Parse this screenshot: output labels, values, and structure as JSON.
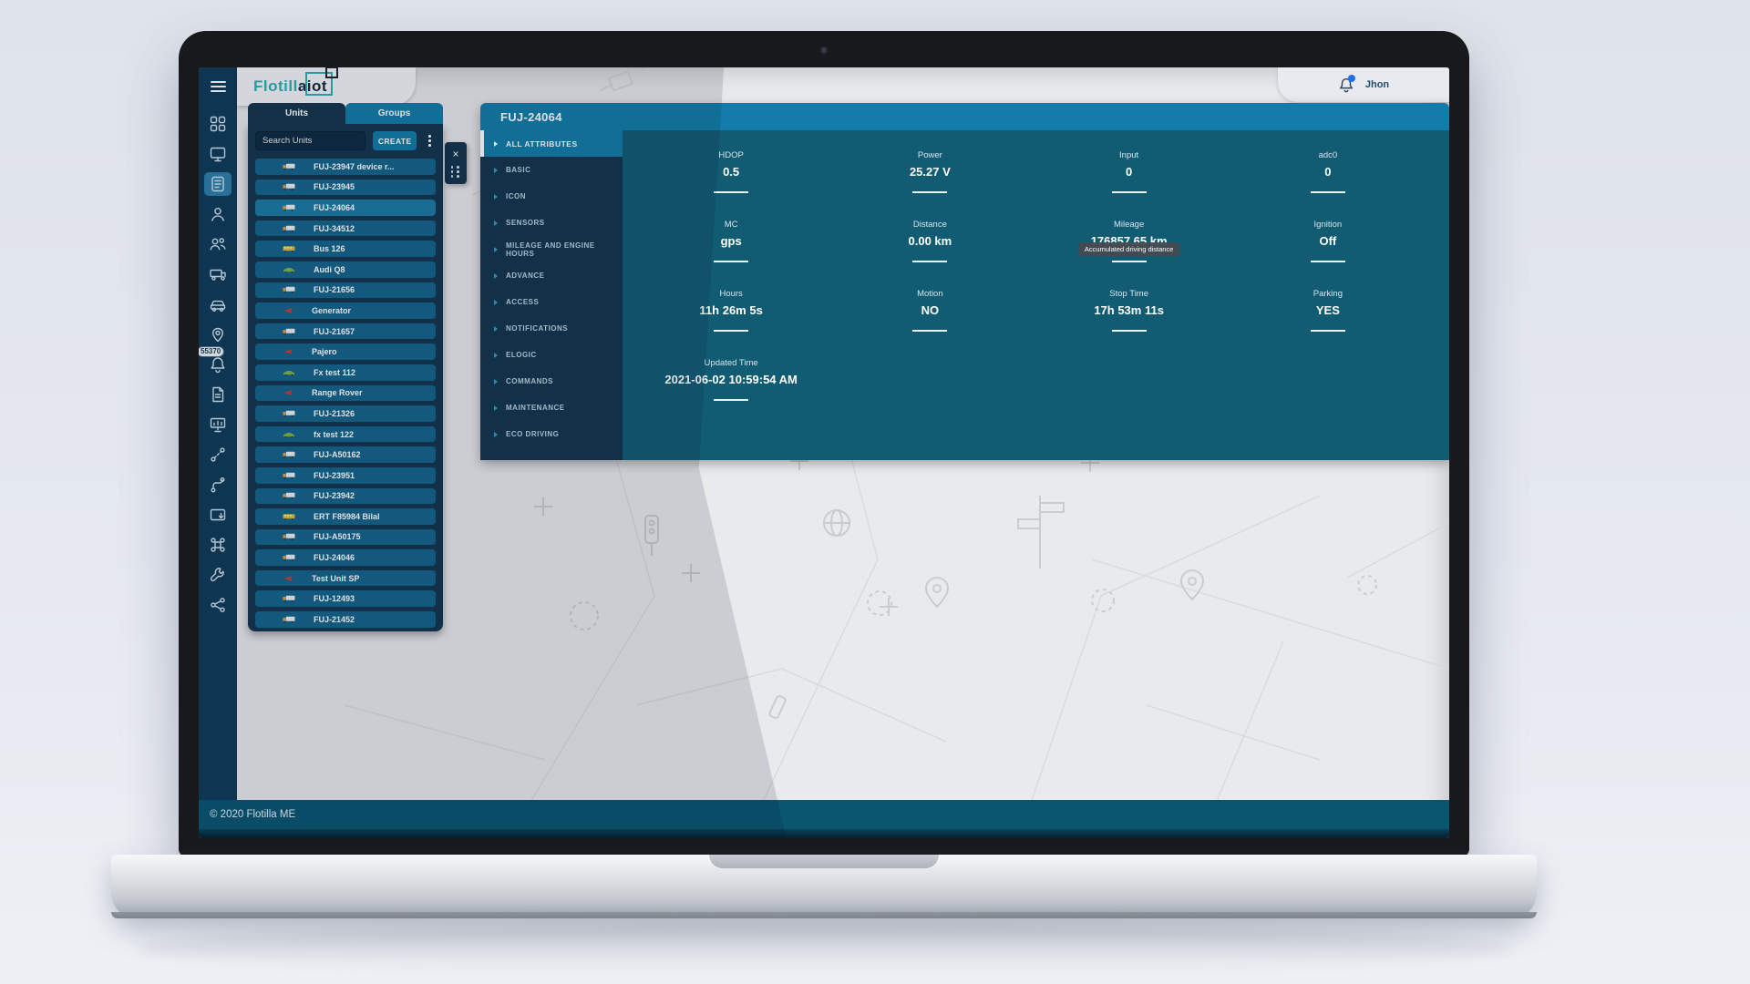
{
  "brand": {
    "logo_part1": "Flotill",
    "logo_part2": "a",
    "logo_part3": "iot"
  },
  "header": {
    "user_name": "Jhon",
    "notification_dot_color": "#1f6ff0"
  },
  "sidebar": {
    "notification_count": "55370",
    "items": [
      {
        "name": "dashboard",
        "icon": "dashboard-icon",
        "active": false
      },
      {
        "name": "monitoring",
        "icon": "monitor-icon",
        "active": false
      },
      {
        "name": "units",
        "icon": "units-list-icon",
        "active": true
      },
      {
        "name": "drivers",
        "icon": "driver-icon",
        "active": false
      },
      {
        "name": "users",
        "icon": "users-icon",
        "active": false
      },
      {
        "name": "trailers",
        "icon": "trailer-icon",
        "active": false
      },
      {
        "name": "vehicles",
        "icon": "car-icon",
        "active": false
      },
      {
        "name": "tracking",
        "icon": "location-pin-icon",
        "active": false
      },
      {
        "name": "notifications",
        "icon": "bell-icon",
        "active": false,
        "badge": "55370"
      },
      {
        "name": "reports",
        "icon": "report-icon",
        "active": false
      },
      {
        "name": "presentation",
        "icon": "presentation-icon",
        "active": false
      },
      {
        "name": "trips",
        "icon": "route-icon",
        "active": false
      },
      {
        "name": "geofences",
        "icon": "waypoint-icon",
        "active": false
      },
      {
        "name": "messages",
        "icon": "outbox-icon",
        "active": false
      },
      {
        "name": "automation",
        "icon": "command-icon",
        "active": false
      },
      {
        "name": "maintenance",
        "icon": "wrench-icon",
        "active": false
      },
      {
        "name": "integrations",
        "icon": "share-nodes-icon",
        "active": false
      }
    ]
  },
  "units_panel": {
    "tabs": [
      {
        "label": "Units",
        "active": true
      },
      {
        "label": "Groups",
        "active": false
      }
    ],
    "search_placeholder": "Search Units",
    "create_button": "CREATE",
    "icon_colors": {
      "truck": "#e29b3d",
      "bus": "#d8b93f",
      "car": "#7cb54a",
      "arrow": "#d6392c"
    },
    "units": [
      {
        "label": "FUJ-23947 device r...",
        "type": "truck",
        "selected": false
      },
      {
        "label": "FUJ-23945",
        "type": "truck",
        "selected": false
      },
      {
        "label": "FUJ-24064",
        "type": "truck",
        "selected": true
      },
      {
        "label": "FUJ-34512",
        "type": "truck",
        "selected": false
      },
      {
        "label": "Bus 126",
        "type": "bus",
        "selected": false
      },
      {
        "label": "Audi Q8",
        "type": "car",
        "selected": false
      },
      {
        "label": "FUJ-21656",
        "type": "truck",
        "selected": false
      },
      {
        "label": "Generator",
        "type": "arrow",
        "selected": false
      },
      {
        "label": "FUJ-21657",
        "type": "truck",
        "selected": false
      },
      {
        "label": "Pajero",
        "type": "arrow",
        "selected": false
      },
      {
        "label": "Fx test 112",
        "type": "car",
        "selected": false
      },
      {
        "label": "Range Rover",
        "type": "arrow",
        "selected": false
      },
      {
        "label": "FUJ-21326",
        "type": "truck",
        "selected": false
      },
      {
        "label": "fx test 122",
        "type": "car",
        "selected": false
      },
      {
        "label": "FUJ-A50162",
        "type": "truck",
        "selected": false
      },
      {
        "label": "FUJ-23951",
        "type": "truck",
        "selected": false
      },
      {
        "label": "FUJ-23942",
        "type": "truck",
        "selected": false
      },
      {
        "label": "ERT F85984 Bilal",
        "type": "bus",
        "selected": false
      },
      {
        "label": "FUJ-A50175",
        "type": "truck",
        "selected": false
      },
      {
        "label": "FUJ-24046",
        "type": "truck",
        "selected": false
      },
      {
        "label": "Test Unit SP",
        "type": "arrow",
        "selected": false
      },
      {
        "label": "FUJ-12493",
        "type": "truck",
        "selected": false
      },
      {
        "label": "FUJ-21452",
        "type": "truck",
        "selected": false
      }
    ]
  },
  "detail_panel": {
    "title": "FUJ-24064",
    "menu": [
      {
        "label": "ALL ATTRIBUTES",
        "active": true
      },
      {
        "label": "BASIC",
        "active": false
      },
      {
        "label": "ICON",
        "active": false
      },
      {
        "label": "SENSORS",
        "active": false
      },
      {
        "label": "MILEAGE AND ENGINE HOURS",
        "active": false
      },
      {
        "label": "ADVANCE",
        "active": false
      },
      {
        "label": "ACCESS",
        "active": false
      },
      {
        "label": "NOTIFICATIONS",
        "active": false
      },
      {
        "label": "ELOGIC",
        "active": false
      },
      {
        "label": "COMMANDS",
        "active": false
      },
      {
        "label": "MAINTENANCE",
        "active": false
      },
      {
        "label": "ECO DRIVING",
        "active": false
      }
    ],
    "attributes": [
      {
        "label": "HDOP",
        "value": "0.5"
      },
      {
        "label": "Power",
        "value": "25.27 V"
      },
      {
        "label": "Input",
        "value": "0"
      },
      {
        "label": "adc0",
        "value": "0"
      },
      {
        "label": "MC",
        "value": "gps"
      },
      {
        "label": "Distance",
        "value": "0.00 km"
      },
      {
        "label": "Mileage",
        "value": "176857.65 km",
        "tooltip": "Accumulated driving distance"
      },
      {
        "label": "Ignition",
        "value": "Off"
      },
      {
        "label": "Hours",
        "value": "11h 26m 5s"
      },
      {
        "label": "Motion",
        "value": "NO"
      },
      {
        "label": "Stop Time",
        "value": "17h 53m 11s"
      },
      {
        "label": "Parking",
        "value": "YES"
      },
      {
        "label": "Updated Time",
        "value": "2021-06-02 10:59:54 AM"
      }
    ]
  },
  "footer": {
    "copyright": "© 2020 Flotilla ME"
  },
  "colors": {
    "accent_teal": "#137ca8",
    "panel_navy": "#14364f",
    "content_teal": "#115c73",
    "logo_teal": "#2bb0b4",
    "footer_teal": "#0a5671"
  }
}
